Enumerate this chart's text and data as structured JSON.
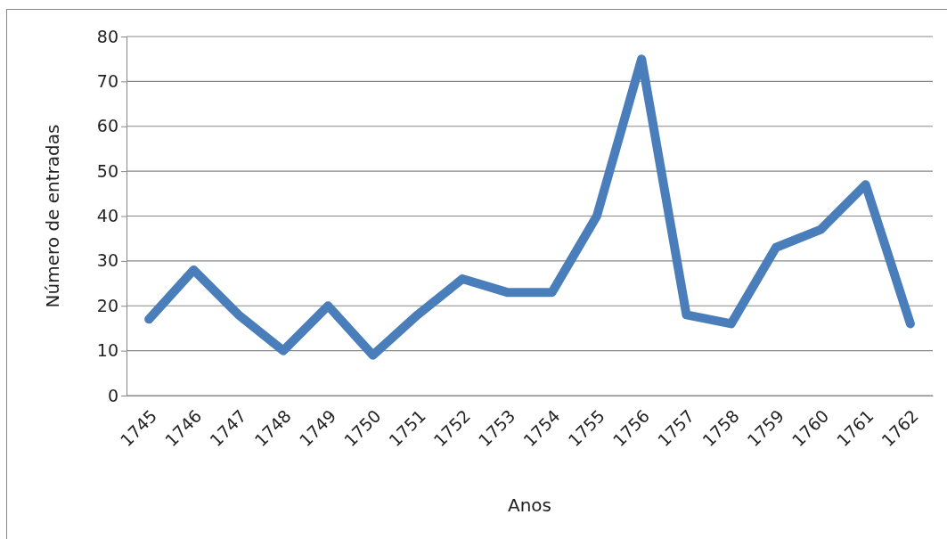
{
  "chart_data": {
    "type": "line",
    "xlabel": "Anos",
    "ylabel": "Número de entradas",
    "categories": [
      "1745",
      "1746",
      "1747",
      "1748",
      "1749",
      "1750",
      "1751",
      "1752",
      "1753",
      "1754",
      "1755",
      "1756",
      "1757",
      "1758",
      "1759",
      "1760",
      "1761",
      "1762"
    ],
    "series": [
      {
        "color": "#4a7ebb",
        "values": [
          17,
          28,
          18,
          10,
          20,
          9,
          18,
          26,
          23,
          23,
          40,
          75,
          18,
          16,
          33,
          37,
          47,
          16
        ]
      }
    ],
    "ylim": [
      0,
      80
    ],
    "yticks": [
      0,
      10,
      20,
      30,
      40,
      50,
      60,
      70,
      80
    ],
    "grid": "y",
    "marker": "none",
    "line_style": "solid"
  }
}
